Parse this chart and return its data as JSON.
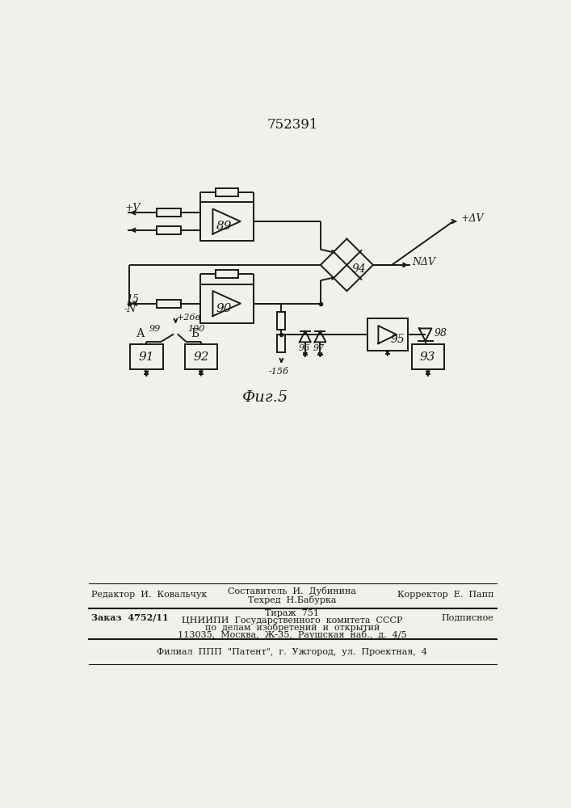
{
  "patent_number": "752391",
  "fig_label": "Фиг.5",
  "background_color": "#f0f0ec",
  "line_color": "#1a1a1a",
  "footer": {
    "editor": "Редактор  И.  Ковальчук",
    "compositor": "Составитель  И.  Дубинина",
    "techred": "Техред  Н.Бабурка",
    "corrector": "Корректор  Е.  Папп",
    "order": "Заказ  4752/11",
    "tirazh": "Тираж  751",
    "podpisnoe": "Подписное",
    "tsniipi": "ЦНИИПИ  Государственного  комитета  СССР",
    "po_delam": "по  делам  изобретений  и  открытий",
    "address": "113035,  Москва,  Ж-35,  Раушская  наб.,  д.  4/5",
    "filial": "Филиал  ППП  \"Патент\",  г.  Ужгород,  ул.  Проектная,  4"
  }
}
